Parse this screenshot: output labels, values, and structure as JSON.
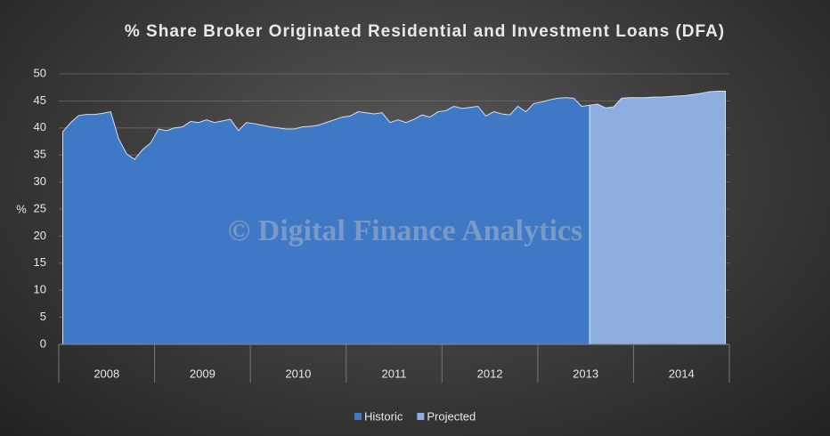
{
  "chart_data": {
    "type": "area",
    "title": "% Share Broker Originated Residential and Investment Loans (DFA)",
    "y_label": "%",
    "watermark": "© Digital Finance Analytics",
    "categories": [
      "2008",
      null,
      null,
      null,
      null,
      null,
      null,
      null,
      null,
      null,
      null,
      null,
      "2009",
      null,
      null,
      null,
      null,
      null,
      null,
      null,
      null,
      null,
      null,
      null,
      "2010",
      null,
      null,
      null,
      null,
      null,
      null,
      null,
      null,
      null,
      null,
      null,
      "2011",
      null,
      null,
      null,
      null,
      null,
      null,
      null,
      null,
      null,
      null,
      null,
      "2012",
      null,
      null,
      null,
      null,
      null,
      null,
      null,
      null,
      null,
      null,
      null,
      "2013",
      null,
      null,
      null,
      null,
      null,
      null,
      null,
      null,
      null,
      null,
      null,
      "2014",
      null,
      null,
      null,
      null,
      null,
      null,
      null,
      null,
      null,
      null,
      null
    ],
    "series": [
      {
        "name": "Historic",
        "color": "#3f78c4",
        "values": [
          39.3,
          41,
          42.3,
          42.5,
          42.5,
          42.7,
          43,
          38,
          35.2,
          34.2,
          36,
          37.2,
          39.8,
          39.5,
          40,
          40.2,
          41.2,
          41,
          41.5,
          41,
          41.3,
          41.6,
          39.5,
          41,
          40.8,
          40.5,
          40.2,
          40,
          39.8,
          39.8,
          40.2,
          40.3,
          40.5,
          41,
          41.5,
          42,
          42.2,
          43,
          42.8,
          42.6,
          42.8,
          41,
          41.5,
          41,
          41.6,
          42.4,
          42,
          43,
          43.2,
          44,
          43.6,
          43.8,
          44,
          42.2,
          43,
          42.6,
          42.4,
          44,
          43,
          44.5,
          44.8,
          45.2,
          45.5,
          45.6,
          45.5,
          44,
          44.2,
          null,
          null,
          null,
          null,
          null,
          null,
          null,
          null,
          null,
          null,
          null,
          null,
          null,
          null,
          null,
          null,
          null
        ]
      },
      {
        "name": "Projected",
        "color": "#8eaee0",
        "values": [
          null,
          null,
          null,
          null,
          null,
          null,
          null,
          null,
          null,
          null,
          null,
          null,
          null,
          null,
          null,
          null,
          null,
          null,
          null,
          null,
          null,
          null,
          null,
          null,
          null,
          null,
          null,
          null,
          null,
          null,
          null,
          null,
          null,
          null,
          null,
          null,
          null,
          null,
          null,
          null,
          null,
          null,
          null,
          null,
          null,
          null,
          null,
          null,
          null,
          null,
          null,
          null,
          null,
          null,
          null,
          null,
          null,
          null,
          null,
          null,
          null,
          null,
          null,
          null,
          null,
          null,
          44.2,
          44.4,
          43.7,
          43.9,
          45.5,
          45.6,
          45.6,
          45.6,
          45.7,
          45.7,
          45.8,
          45.9,
          46,
          46.2,
          46.4,
          46.7,
          46.8,
          46.8
        ]
      }
    ],
    "ylim": [
      0,
      50
    ],
    "yticks": [
      0,
      5,
      10,
      15,
      20,
      25,
      30,
      35,
      40,
      45,
      50
    ],
    "grid": true,
    "legend": "bottom"
  }
}
